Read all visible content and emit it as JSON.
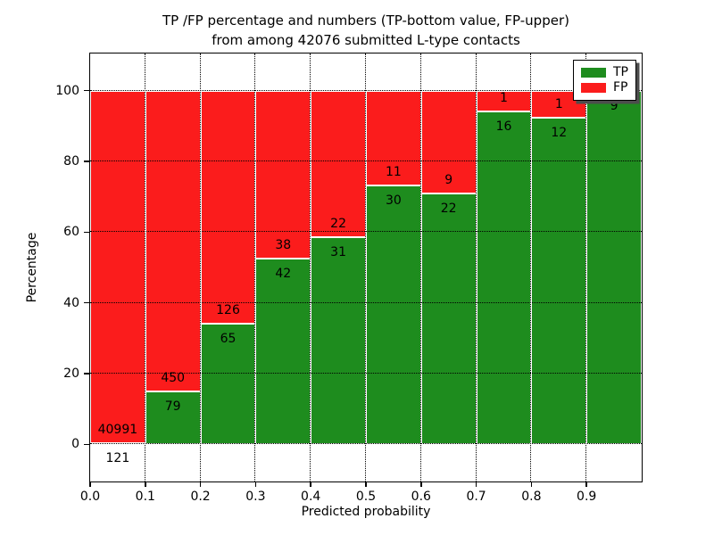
{
  "figure": {
    "background": "#ffffff"
  },
  "chart_data": {
    "type": "bar",
    "stacked": true,
    "title_lines": [
      "TP /FP percentage and numbers (TP-bottom value, FP-upper)",
      "from among 42076 submitted L-type contacts"
    ],
    "total_contacts": 42076,
    "xlabel": "Predicted probability",
    "ylabel": "Percentage",
    "xlim": [
      0.0,
      1.0
    ],
    "ylim": [
      -10.5,
      110.5
    ],
    "bin_width": 0.1,
    "xtick_values": [
      0.0,
      0.1,
      0.2,
      0.3,
      0.4,
      0.5,
      0.6,
      0.7,
      0.8,
      0.9
    ],
    "xtick_labels": [
      "0.0",
      "0.1",
      "0.2",
      "0.3",
      "0.4",
      "0.5",
      "0.6",
      "0.7",
      "0.8",
      "0.9"
    ],
    "ytick_values": [
      0,
      20,
      40,
      60,
      80,
      100
    ],
    "ytick_labels": [
      "0",
      "20",
      "40",
      "60",
      "80",
      "100"
    ],
    "grid": {
      "linestyle": "dotted",
      "color": "#000000",
      "on_top": true
    },
    "legend": {
      "position": "upper-right",
      "entries": [
        {
          "label": "TP",
          "color": "#1e8c1e"
        },
        {
          "label": "FP",
          "color": "#fb1c1c"
        }
      ]
    },
    "colors": {
      "tp_green": "#1e8c1e",
      "fp_red": "#fb1c1c",
      "bar_edge": "#ffffff",
      "axis": "#000000"
    },
    "bins": [
      {
        "x_start": 0.0,
        "tp": 121,
        "fp": 40991
      },
      {
        "x_start": 0.1,
        "tp": 79,
        "fp": 450
      },
      {
        "x_start": 0.2,
        "tp": 65,
        "fp": 126
      },
      {
        "x_start": 0.3,
        "tp": 42,
        "fp": 38
      },
      {
        "x_start": 0.4,
        "tp": 31,
        "fp": 22
      },
      {
        "x_start": 0.5,
        "tp": 30,
        "fp": 11
      },
      {
        "x_start": 0.6,
        "tp": 22,
        "fp": 9
      },
      {
        "x_start": 0.7,
        "tp": 16,
        "fp": 1
      },
      {
        "x_start": 0.8,
        "tp": 12,
        "fp": 1
      },
      {
        "x_start": 0.9,
        "tp": 9,
        "fp": 0
      }
    ]
  }
}
